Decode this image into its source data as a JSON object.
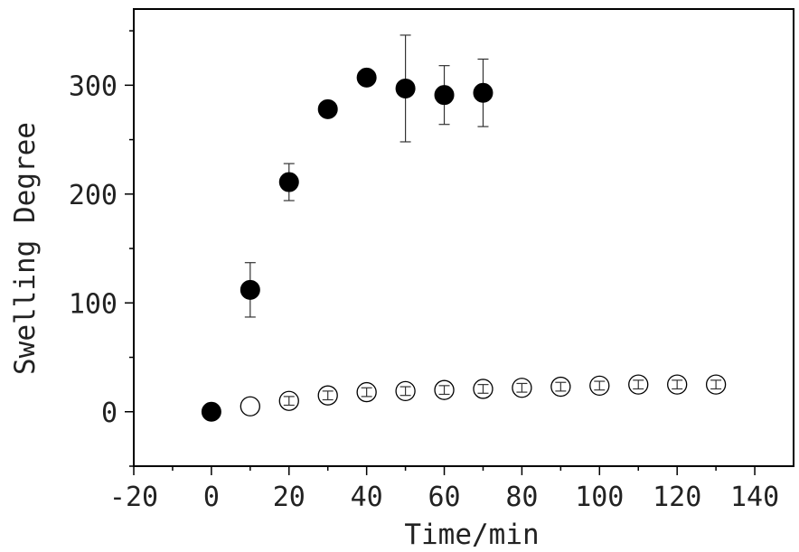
{
  "chart_data": {
    "type": "scatter",
    "title": "",
    "xlabel": "Time/min",
    "ylabel": "Swelling Degree",
    "xlim": [
      -20,
      150
    ],
    "ylim": [
      -50,
      370
    ],
    "xticks": [
      -20,
      0,
      20,
      40,
      60,
      80,
      100,
      120,
      140
    ],
    "xtick_labels": [
      "-20",
      "0",
      "20",
      "40",
      "60",
      "80",
      "100",
      "120",
      "140"
    ],
    "yticks": [
      0,
      100,
      200,
      300
    ],
    "ytick_labels": [
      "0",
      "100",
      "200",
      "300"
    ],
    "grid": false,
    "series": [
      {
        "marker": "filled-circle",
        "color": "#000000",
        "points": [
          {
            "x": 0,
            "y": 0,
            "err": 0
          },
          {
            "x": 10,
            "y": 112,
            "err": 25
          },
          {
            "x": 20,
            "y": 211,
            "err": 17
          },
          {
            "x": 30,
            "y": 278,
            "err": 0
          },
          {
            "x": 40,
            "y": 307,
            "err": 0
          },
          {
            "x": 50,
            "y": 297,
            "err": 49
          },
          {
            "x": 60,
            "y": 291,
            "err": 27
          },
          {
            "x": 70,
            "y": 293,
            "err": 31
          }
        ]
      },
      {
        "marker": "open-circle",
        "color": "#000000",
        "points": [
          {
            "x": 10,
            "y": 5,
            "err": 0
          },
          {
            "x": 20,
            "y": 10,
            "err": 4
          },
          {
            "x": 30,
            "y": 15,
            "err": 4
          },
          {
            "x": 40,
            "y": 18,
            "err": 4
          },
          {
            "x": 50,
            "y": 19,
            "err": 4
          },
          {
            "x": 60,
            "y": 20,
            "err": 4
          },
          {
            "x": 70,
            "y": 21,
            "err": 4
          },
          {
            "x": 80,
            "y": 22,
            "err": 4
          },
          {
            "x": 90,
            "y": 23,
            "err": 4
          },
          {
            "x": 100,
            "y": 24,
            "err": 4
          },
          {
            "x": 110,
            "y": 25,
            "err": 4
          },
          {
            "x": 120,
            "y": 25,
            "err": 4
          },
          {
            "x": 130,
            "y": 25,
            "err": 4
          }
        ]
      }
    ]
  }
}
